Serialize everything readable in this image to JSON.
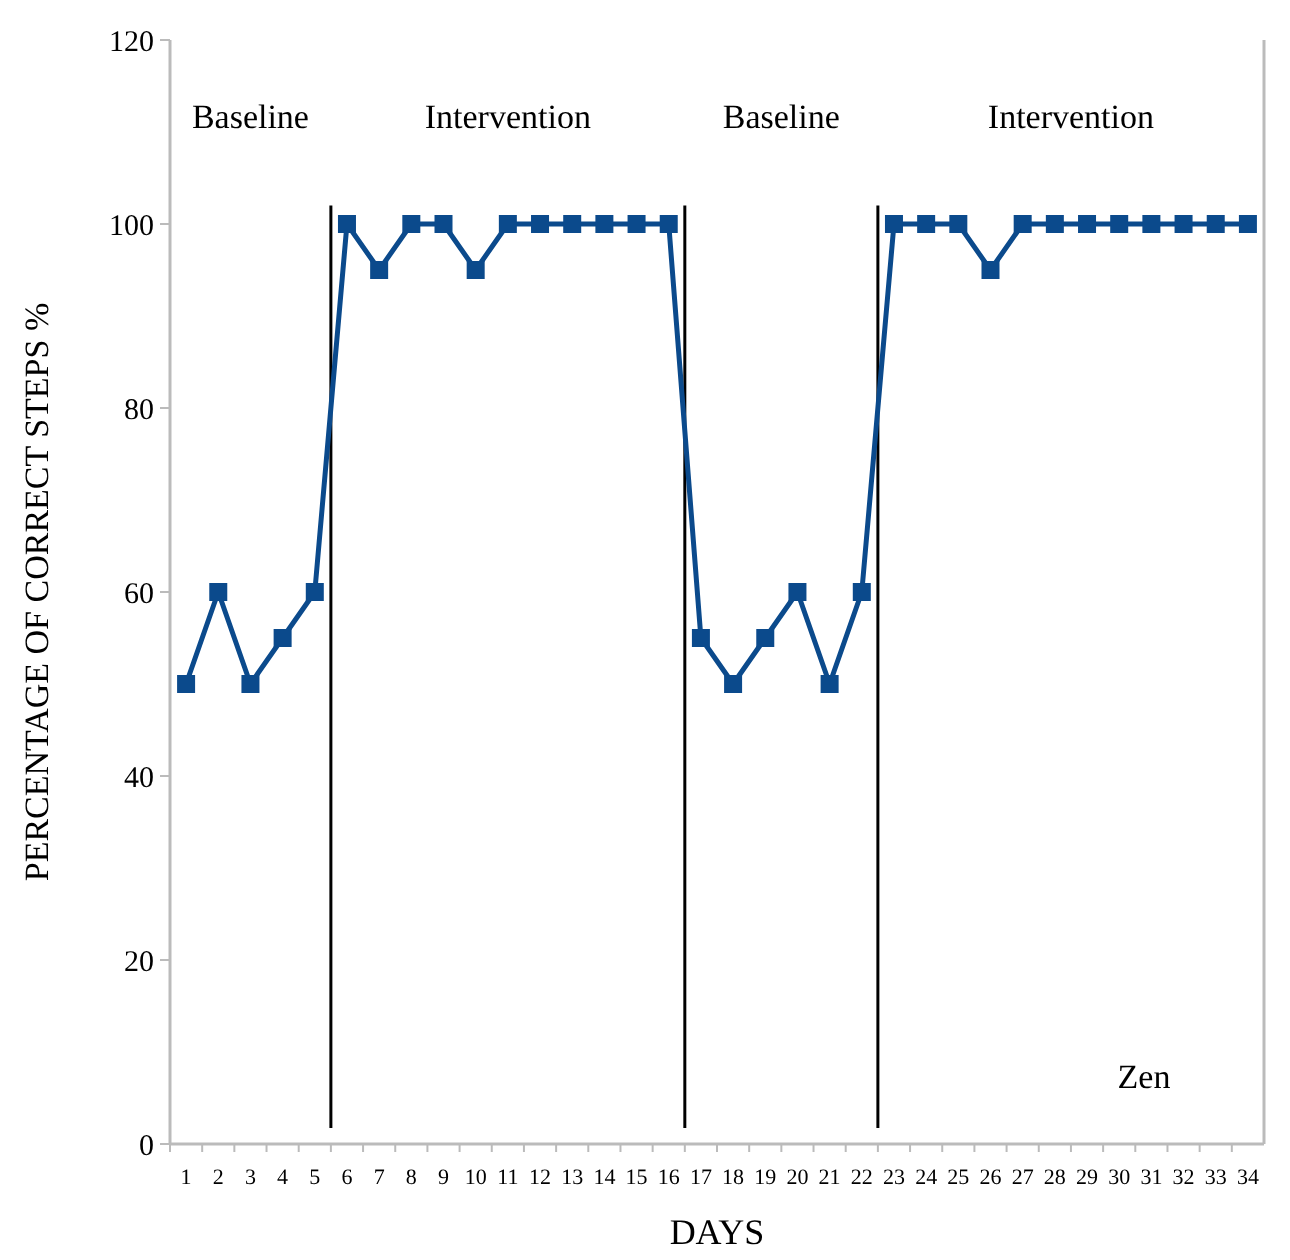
{
  "chart_data": {
    "type": "line",
    "xlabel": "DAYS",
    "ylabel": "PERCENTAGE OF CORRECT STEPS %",
    "x": [
      1,
      2,
      3,
      4,
      5,
      6,
      7,
      8,
      9,
      10,
      11,
      12,
      13,
      14,
      15,
      16,
      17,
      18,
      19,
      20,
      21,
      22,
      23,
      24,
      25,
      26,
      27,
      28,
      29,
      30,
      31,
      32,
      33,
      34
    ],
    "series": [
      {
        "color": "#0b4a8c",
        "values": [
          50,
          60,
          50,
          55,
          60,
          100,
          95,
          100,
          100,
          95,
          100,
          100,
          100,
          100,
          100,
          100,
          55,
          50,
          55,
          60,
          50,
          60,
          100,
          100,
          100,
          95,
          100,
          100,
          100,
          100,
          100,
          100,
          100,
          100
        ]
      }
    ],
    "xlim": [
      0.5,
      34.5
    ],
    "xticks": [
      1,
      2,
      3,
      4,
      5,
      6,
      7,
      8,
      9,
      10,
      11,
      12,
      13,
      14,
      15,
      16,
      17,
      18,
      19,
      20,
      21,
      22,
      23,
      24,
      25,
      26,
      27,
      28,
      29,
      30,
      31,
      32,
      33,
      34
    ],
    "ylim": [
      0,
      120
    ],
    "yticks": [
      0,
      20,
      40,
      60,
      80,
      100,
      120
    ],
    "marker": "square",
    "line_style": "solid",
    "grid": false,
    "ref_lines": [
      {
        "axis": "x",
        "value": 5.5,
        "color": "#000000"
      },
      {
        "axis": "x",
        "value": 16.5,
        "color": "#000000"
      },
      {
        "axis": "x",
        "value": 22.5,
        "color": "#000000"
      }
    ],
    "annotations": [
      "Baseline",
      "Intervention",
      "Baseline",
      "Intervention",
      "Zen"
    ]
  }
}
